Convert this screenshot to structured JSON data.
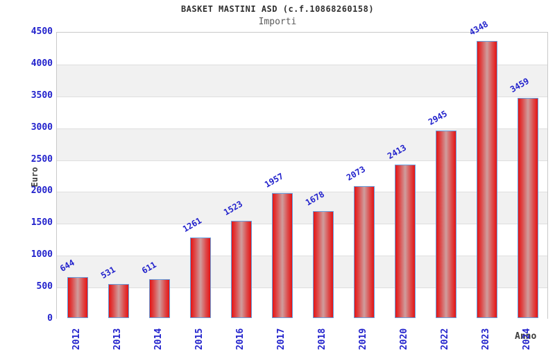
{
  "header": {
    "title": "BASKET MASTINI ASD (c.f.10868260158)",
    "subtitle": "Importi"
  },
  "chart_data": {
    "type": "bar",
    "title": "BASKET MASTINI ASD (c.f.10868260158)",
    "subtitle": "Importi",
    "categories": [
      "2012",
      "2013",
      "2014",
      "2015",
      "2016",
      "2017",
      "2018",
      "2019",
      "2020",
      "2022",
      "2023",
      "2024"
    ],
    "values": [
      644,
      531,
      611,
      1261,
      1523,
      1957,
      1678,
      2073,
      2413,
      2945,
      4348,
      3459
    ],
    "xlabel": "Anno",
    "ylabel": "Euro",
    "ylim": [
      0,
      4500
    ],
    "ytick_step": 500,
    "yticks": [
      0,
      500,
      1000,
      1500,
      2000,
      2500,
      3000,
      3500,
      4000,
      4500
    ],
    "grid": "alternating-horizontal-bands",
    "legend_position": "none",
    "bar_value_labels_rotation_deg": -30,
    "x_tick_rotation_deg": -90,
    "colors": {
      "bar_fill_edge": "#e51414",
      "bar_fill_center": "#cf9d9d",
      "bar_outline": "#64a0e0",
      "tick_text": "#2222cc",
      "value_label_text": "#2222cc",
      "band_gray": "#f1f1f1",
      "band_white": "#ffffff",
      "plot_border": "#c9c9c9",
      "title_text": "#2e2e2e",
      "subtitle_text": "#5a5a5a",
      "axis_title_text": "#3d3d3d"
    }
  }
}
